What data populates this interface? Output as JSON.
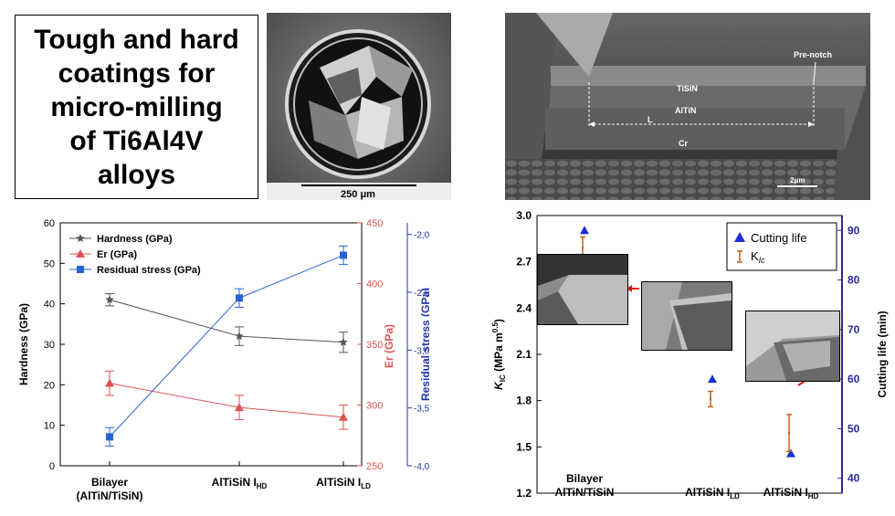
{
  "title_box": {
    "lines": [
      "Tough and hard",
      "coatings for",
      "micro-milling",
      "of Ti6Al4V",
      "alloys"
    ]
  },
  "sem_tool": {
    "scale_label": "250 μm"
  },
  "sem_cantilever": {
    "labels": {
      "pre_notch": "Pre-notch",
      "tisin": "TiSiN",
      "altin": "AlTiN",
      "length": "L",
      "cr": "Cr"
    },
    "scale_label": "2μm"
  },
  "chart_data": [
    {
      "type": "line",
      "categories": [
        "Bilayer\n(AlTiN/TiSiN)",
        "AlTiSiN I_HD",
        "AlTiSiN I_LD"
      ],
      "category_labels": [
        {
          "line1": "Bilayer",
          "line2": "(AlTiN/TiSiN)"
        },
        {
          "main": "AlTiSiN I",
          "sub": "HD"
        },
        {
          "main": "AlTiSiN I",
          "sub": "LD"
        }
      ],
      "axes": {
        "left": {
          "label": "Hardness (GPa)",
          "range": [
            0,
            60
          ],
          "ticks": [
            0,
            10,
            20,
            30,
            40,
            50,
            60
          ],
          "color": "#000000"
        },
        "right1": {
          "label": "Er (GPa)",
          "range": [
            250,
            450
          ],
          "ticks": [
            250,
            300,
            350,
            400,
            450
          ],
          "color": "#e05252"
        },
        "right2": {
          "label": "Residual stress (GPa)",
          "range": [
            -4.0,
            -1.9
          ],
          "ticks": [
            "-4,0",
            "-3,5",
            "-3,0",
            "-2,5",
            "-2,0"
          ],
          "tick_values": [
            -4.0,
            -3.5,
            -3.0,
            -2.5,
            -2.0
          ],
          "color": "#2233aa"
        }
      },
      "series": [
        {
          "name": "Hardness (GPa)",
          "axis": "left",
          "color": "#555555",
          "marker": "star",
          "values": [
            41,
            32,
            30.5
          ],
          "errors": [
            1.5,
            2.3,
            2.5
          ]
        },
        {
          "name": "Er (GPa)",
          "axis": "right1",
          "color": "#e05252",
          "marker": "triangle",
          "values": [
            318,
            298,
            290
          ],
          "errors": [
            10,
            10,
            10
          ]
        },
        {
          "name": "Residual stress (GPa)",
          "axis": "right2",
          "color": "#2a62d4",
          "marker": "square",
          "values": [
            -3.75,
            -2.55,
            -2.18
          ],
          "errors": [
            0.08,
            0.08,
            0.08
          ]
        }
      ],
      "legend_position": "top-left"
    },
    {
      "type": "scatter",
      "categories": [
        "Bilayer AlTiN/TiSiN",
        "AlTiSiN I_LD",
        "AlTiSiN I_HD"
      ],
      "category_labels": [
        {
          "line1": "Bilayer",
          "line2": "AlTiN/TiSiN"
        },
        {
          "main": "AlTiSiN I",
          "sub": "LD"
        },
        {
          "main": "AlTiSiN I",
          "sub": "HD"
        }
      ],
      "axes": {
        "left": {
          "label_main": "K",
          "label_sub": "IC",
          "label_unit": " (MPa m",
          "label_sup": "0.5",
          "label_end": ")",
          "range": [
            1.2,
            3.0
          ],
          "ticks": [
            "1.2",
            "1.5",
            "1.8",
            "2.1",
            "2.4",
            "2.7",
            "3.0"
          ],
          "tick_values": [
            1.2,
            1.5,
            1.8,
            2.1,
            2.4,
            2.7,
            3.0
          ]
        },
        "right": {
          "label": "Cutting life (min)",
          "range": [
            37,
            93
          ],
          "ticks": [
            40,
            50,
            60,
            70,
            80,
            90
          ],
          "color": "#2a2aa8"
        }
      },
      "series": [
        {
          "name": "Cutting life",
          "axis": "right",
          "color": "#1b2fd6",
          "marker": "triangle",
          "values": [
            90,
            60,
            45
          ]
        },
        {
          "name": "K_IC",
          "axis": "left",
          "color": "#c0621c",
          "marker": "errorbar",
          "values": [
            2.79,
            1.81,
            1.59
          ],
          "errors": [
            0.07,
            0.05,
            0.12
          ]
        }
      ],
      "legend": [
        {
          "label": "Cutting life"
        },
        {
          "label_main": "K",
          "label_sub": "Ic"
        }
      ],
      "legend_position": "top-right"
    }
  ]
}
